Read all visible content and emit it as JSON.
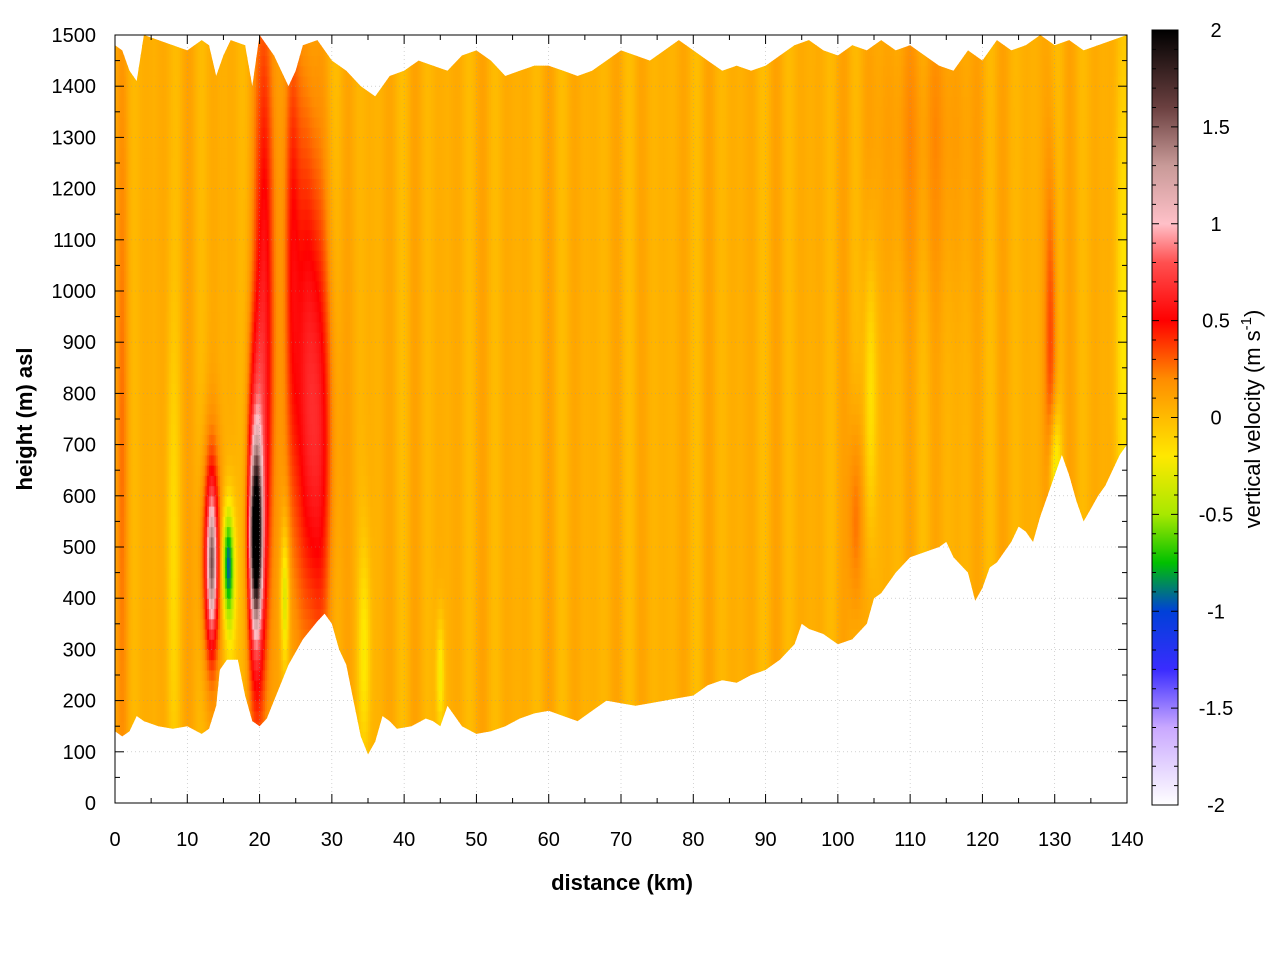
{
  "chart_data": {
    "type": "heatmap",
    "title": "",
    "xlabel": "distance (km)",
    "ylabel": "height (m) asl",
    "xlim": [
      0,
      140
    ],
    "ylim": [
      0,
      1500
    ],
    "x_ticks": [
      0,
      10,
      20,
      30,
      40,
      50,
      60,
      70,
      80,
      90,
      100,
      110,
      120,
      130,
      140
    ],
    "y_ticks": [
      0,
      100,
      200,
      300,
      400,
      500,
      600,
      700,
      800,
      900,
      1000,
      1100,
      1200,
      1300,
      1400,
      1500
    ],
    "grid": true,
    "colorbar": {
      "label": "vertical velocity (m s",
      "label_sup": "-1",
      "label_end": ")",
      "range": [
        -2,
        2
      ],
      "ticks": [
        2,
        1.5,
        1,
        0.5,
        0,
        -0.5,
        -1,
        -1.5,
        -2
      ],
      "tick_labels": [
        "2",
        "1.5",
        "1",
        "0.5",
        "0",
        "-0.5",
        "-1",
        "-1.5",
        "-2"
      ],
      "colors": [
        {
          "value": -2.0,
          "color": "#ffffff"
        },
        {
          "value": -1.6,
          "color": "#c9a8ff"
        },
        {
          "value": -1.3,
          "color": "#3a2cff"
        },
        {
          "value": -1.0,
          "color": "#0040d8"
        },
        {
          "value": -0.75,
          "color": "#00c000"
        },
        {
          "value": -0.5,
          "color": "#a8e800"
        },
        {
          "value": -0.2,
          "color": "#ffe800"
        },
        {
          "value": 0.0,
          "color": "#ffbb00"
        },
        {
          "value": 0.2,
          "color": "#ff8c00"
        },
        {
          "value": 0.5,
          "color": "#ff0000"
        },
        {
          "value": 0.8,
          "color": "#ff5050"
        },
        {
          "value": 1.0,
          "color": "#ffc0c8"
        },
        {
          "value": 1.3,
          "color": "#c89a98"
        },
        {
          "value": 1.6,
          "color": "#6b4040"
        },
        {
          "value": 2.0,
          "color": "#000000"
        }
      ]
    },
    "background_w": 0.05,
    "ground_profile": [
      [
        0,
        140
      ],
      [
        1,
        130
      ],
      [
        2,
        140
      ],
      [
        3,
        170
      ],
      [
        4,
        160
      ],
      [
        6,
        150
      ],
      [
        8,
        145
      ],
      [
        10,
        150
      ],
      [
        12,
        135
      ],
      [
        13,
        145
      ],
      [
        14,
        190
      ],
      [
        14.5,
        260
      ],
      [
        15.5,
        280
      ],
      [
        17,
        280
      ],
      [
        18,
        210
      ],
      [
        19,
        160
      ],
      [
        20,
        150
      ],
      [
        21,
        165
      ],
      [
        22,
        200
      ],
      [
        24,
        270
      ],
      [
        26,
        320
      ],
      [
        28,
        355
      ],
      [
        29,
        370
      ],
      [
        30,
        350
      ],
      [
        31,
        300
      ],
      [
        32,
        270
      ],
      [
        33,
        200
      ],
      [
        34,
        130
      ],
      [
        35,
        95
      ],
      [
        36,
        120
      ],
      [
        37,
        170
      ],
      [
        38,
        160
      ],
      [
        39,
        145
      ],
      [
        41,
        150
      ],
      [
        43,
        165
      ],
      [
        44,
        160
      ],
      [
        45,
        150
      ],
      [
        46,
        190
      ],
      [
        48,
        150
      ],
      [
        50,
        135
      ],
      [
        52,
        140
      ],
      [
        54,
        150
      ],
      [
        56,
        165
      ],
      [
        58,
        175
      ],
      [
        60,
        180
      ],
      [
        62,
        170
      ],
      [
        64,
        160
      ],
      [
        66,
        180
      ],
      [
        68,
        200
      ],
      [
        70,
        195
      ],
      [
        72,
        190
      ],
      [
        74,
        195
      ],
      [
        76,
        200
      ],
      [
        78,
        205
      ],
      [
        80,
        210
      ],
      [
        82,
        230
      ],
      [
        84,
        240
      ],
      [
        86,
        235
      ],
      [
        88,
        250
      ],
      [
        90,
        260
      ],
      [
        92,
        280
      ],
      [
        94,
        310
      ],
      [
        95,
        350
      ],
      [
        96,
        340
      ],
      [
        98,
        330
      ],
      [
        100,
        310
      ],
      [
        102,
        320
      ],
      [
        104,
        350
      ],
      [
        105,
        400
      ],
      [
        106,
        410
      ],
      [
        108,
        450
      ],
      [
        110,
        480
      ],
      [
        112,
        490
      ],
      [
        114,
        500
      ],
      [
        115,
        510
      ],
      [
        116,
        480
      ],
      [
        118,
        450
      ],
      [
        119,
        395
      ],
      [
        120,
        420
      ],
      [
        121,
        460
      ],
      [
        122,
        470
      ],
      [
        124,
        510
      ],
      [
        125,
        540
      ],
      [
        126,
        530
      ],
      [
        127,
        510
      ],
      [
        128,
        560
      ],
      [
        129,
        600
      ],
      [
        130,
        640
      ],
      [
        131,
        680
      ],
      [
        132,
        640
      ],
      [
        133,
        590
      ],
      [
        134,
        550
      ],
      [
        135,
        575
      ],
      [
        136,
        600
      ],
      [
        137,
        620
      ],
      [
        138,
        650
      ],
      [
        139,
        680
      ],
      [
        140,
        700
      ]
    ],
    "top_profile": [
      [
        0,
        1480
      ],
      [
        1,
        1470
      ],
      [
        2,
        1430
      ],
      [
        3,
        1410
      ],
      [
        4,
        1500
      ],
      [
        6,
        1490
      ],
      [
        8,
        1480
      ],
      [
        10,
        1470
      ],
      [
        12,
        1490
      ],
      [
        13,
        1480
      ],
      [
        14,
        1420
      ],
      [
        15,
        1460
      ],
      [
        16,
        1490
      ],
      [
        18,
        1480
      ],
      [
        19,
        1400
      ],
      [
        20,
        1500
      ],
      [
        22,
        1460
      ],
      [
        24,
        1400
      ],
      [
        25,
        1430
      ],
      [
        26,
        1480
      ],
      [
        28,
        1490
      ],
      [
        30,
        1450
      ],
      [
        32,
        1430
      ],
      [
        34,
        1400
      ],
      [
        36,
        1380
      ],
      [
        38,
        1420
      ],
      [
        40,
        1430
      ],
      [
        42,
        1450
      ],
      [
        44,
        1440
      ],
      [
        46,
        1430
      ],
      [
        48,
        1460
      ],
      [
        50,
        1470
      ],
      [
        52,
        1450
      ],
      [
        54,
        1420
      ],
      [
        56,
        1430
      ],
      [
        58,
        1440
      ],
      [
        60,
        1440
      ],
      [
        62,
        1430
      ],
      [
        64,
        1420
      ],
      [
        66,
        1430
      ],
      [
        68,
        1450
      ],
      [
        70,
        1470
      ],
      [
        72,
        1460
      ],
      [
        74,
        1450
      ],
      [
        76,
        1470
      ],
      [
        78,
        1490
      ],
      [
        80,
        1470
      ],
      [
        82,
        1450
      ],
      [
        84,
        1430
      ],
      [
        86,
        1440
      ],
      [
        88,
        1430
      ],
      [
        90,
        1440
      ],
      [
        92,
        1460
      ],
      [
        94,
        1480
      ],
      [
        96,
        1490
      ],
      [
        98,
        1470
      ],
      [
        100,
        1460
      ],
      [
        102,
        1480
      ],
      [
        104,
        1470
      ],
      [
        106,
        1490
      ],
      [
        108,
        1470
      ],
      [
        110,
        1480
      ],
      [
        112,
        1460
      ],
      [
        114,
        1440
      ],
      [
        116,
        1430
      ],
      [
        118,
        1470
      ],
      [
        120,
        1450
      ],
      [
        122,
        1490
      ],
      [
        124,
        1470
      ],
      [
        126,
        1480
      ],
      [
        128,
        1500
      ],
      [
        130,
        1480
      ],
      [
        132,
        1490
      ],
      [
        134,
        1470
      ],
      [
        136,
        1480
      ],
      [
        138,
        1490
      ],
      [
        140,
        1500
      ]
    ],
    "features": [
      {
        "x": 13.3,
        "z": 480,
        "sx": 0.9,
        "sz": 150,
        "w": 0.6
      },
      {
        "x": 13.4,
        "z": 470,
        "sx": 0.45,
        "sz": 90,
        "w": 0.9
      },
      {
        "x": 15.6,
        "z": 470,
        "sx": 0.5,
        "sz": 70,
        "w": -0.75
      },
      {
        "x": 16.0,
        "z": 420,
        "sx": 0.6,
        "sz": 120,
        "w": -0.35
      },
      {
        "x": 19.5,
        "z": 560,
        "sx": 0.8,
        "sz": 250,
        "w": 0.7
      },
      {
        "x": 19.5,
        "z": 520,
        "sx": 0.55,
        "sz": 110,
        "w": 1.7
      },
      {
        "x": 20.8,
        "z": 950,
        "sx": 0.9,
        "sz": 500,
        "w": 0.55
      },
      {
        "x": 23.5,
        "z": 400,
        "sx": 0.4,
        "sz": 100,
        "w": -0.45
      },
      {
        "x": 24.5,
        "z": 1100,
        "sx": 0.7,
        "sz": 350,
        "w": 0.35
      },
      {
        "x": 27.5,
        "z": 700,
        "sx": 1.8,
        "sz": 300,
        "w": 0.55
      },
      {
        "x": 26.5,
        "z": 1100,
        "sx": 1.2,
        "sz": 300,
        "w": 0.25
      },
      {
        "x": 34.5,
        "z": 300,
        "sx": 0.6,
        "sz": 150,
        "w": -0.25
      },
      {
        "x": 45.0,
        "z": 250,
        "sx": 0.4,
        "sz": 80,
        "w": -0.3
      },
      {
        "x": 102.5,
        "z": 550,
        "sx": 0.7,
        "sz": 150,
        "w": 0.25
      },
      {
        "x": 104.5,
        "z": 800,
        "sx": 0.6,
        "sz": 200,
        "w": -0.25
      },
      {
        "x": 112.0,
        "z": 1300,
        "sx": 5.0,
        "sz": 200,
        "w": 0.12
      },
      {
        "x": 129.5,
        "z": 900,
        "sx": 0.6,
        "sz": 250,
        "w": 0.3
      },
      {
        "x": 130.0,
        "z": 650,
        "sx": 0.6,
        "sz": 80,
        "w": -0.35
      },
      {
        "x": 139.5,
        "z": 900,
        "sx": 0.8,
        "sz": 400,
        "w": -0.2
      },
      {
        "x": 1.0,
        "z": 700,
        "sx": 0.6,
        "sz": 500,
        "w": 0.15
      },
      {
        "x": 8.0,
        "z": 500,
        "sx": 0.6,
        "sz": 300,
        "w": -0.15
      }
    ]
  }
}
